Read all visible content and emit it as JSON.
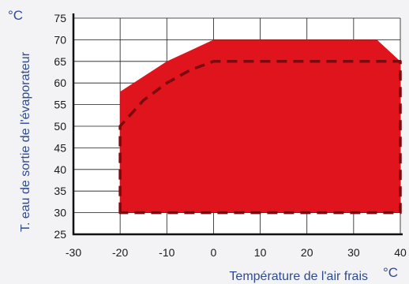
{
  "chart_data": {
    "type": "area",
    "xlabel": "Température de l'air frais",
    "ylabel": "T. eau de sortie de l'évaporateur",
    "x_unit": "°C",
    "y_unit": "°C",
    "xlim": [
      -30,
      40
    ],
    "ylim": [
      25,
      75
    ],
    "x_ticks": [
      "-30",
      "-20",
      "-10",
      "0",
      "10",
      "20",
      "30",
      "40"
    ],
    "y_ticks": [
      "25",
      "30",
      "35",
      "40",
      "45",
      "50",
      "55",
      "60",
      "65",
      "70",
      "75"
    ],
    "grid": true,
    "series": [
      {
        "style": "filled-area",
        "color": "#e0141c",
        "points": [
          [
            -20,
            30
          ],
          [
            -20,
            58
          ],
          [
            -10,
            65
          ],
          [
            -5,
            67.5
          ],
          [
            0,
            70
          ],
          [
            35,
            70
          ],
          [
            40,
            65
          ],
          [
            40,
            30
          ]
        ]
      },
      {
        "style": "dashed-outline",
        "color": "#7a0a0f",
        "points": [
          [
            -20,
            30
          ],
          [
            -20,
            50
          ],
          [
            -15,
            56
          ],
          [
            -10,
            60
          ],
          [
            -5,
            63
          ],
          [
            0,
            65
          ],
          [
            40,
            65
          ],
          [
            40,
            30
          ]
        ]
      }
    ]
  }
}
